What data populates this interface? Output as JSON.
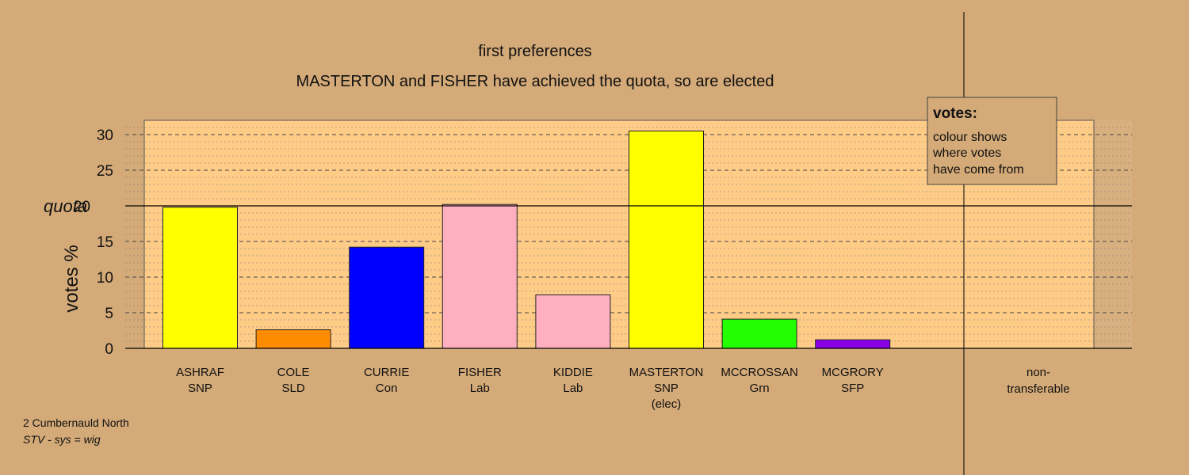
{
  "chart_data": {
    "type": "bar",
    "title": "first preferences",
    "subtitle": "MASTERTON and FISHER have achieved the quota, so are elected",
    "ylabel": "votes %",
    "ylim": [
      0,
      32
    ],
    "yticks": [
      0,
      5,
      10,
      15,
      20,
      25,
      30
    ],
    "quota": 20,
    "quota_label": "quota",
    "grid": true,
    "legend": {
      "position": "top-right",
      "title": "votes:",
      "lines": [
        "colour shows",
        "where votes",
        "have come from"
      ]
    },
    "candidates": [
      {
        "name": "ASHRAF",
        "party": "SNP",
        "note": "",
        "value": 19.8,
        "color": "#ffff00"
      },
      {
        "name": "COLE",
        "party": "SLD",
        "note": "",
        "value": 2.6,
        "color": "#ff8c00"
      },
      {
        "name": "CURRIE",
        "party": "Con",
        "note": "",
        "value": 14.2,
        "color": "#0000ff"
      },
      {
        "name": "FISHER",
        "party": "Lab",
        "note": "",
        "value": 20.2,
        "color": "#ffb0c0"
      },
      {
        "name": "KIDDIE",
        "party": "Lab",
        "note": "",
        "value": 7.5,
        "color": "#ffb0c0"
      },
      {
        "name": "MASTERTON",
        "party": "SNP",
        "note": "(elec)",
        "value": 30.5,
        "color": "#ffff00"
      },
      {
        "name": "MCCROSSAN",
        "party": "Grn",
        "note": "",
        "value": 4.1,
        "color": "#22ff00"
      },
      {
        "name": "MCGRORY",
        "party": "SFP",
        "note": "",
        "value": 1.2,
        "color": "#8a00e6"
      }
    ],
    "nontransferable": {
      "line1": "non-",
      "line2": "transferable",
      "value": 0
    }
  },
  "footer": {
    "ward": "2 Cumbernauld North",
    "system": "STV - sys = wig"
  }
}
